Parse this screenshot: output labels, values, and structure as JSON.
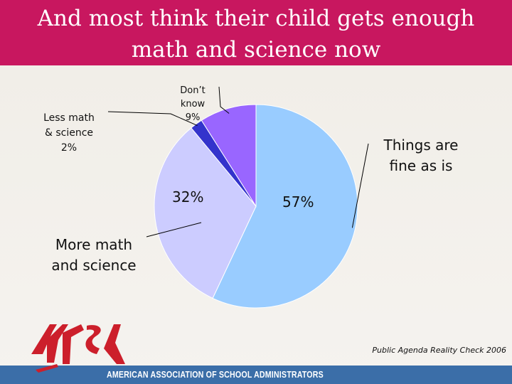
{
  "slide": {
    "title_line1": "And most think their child gets enough",
    "title_line2": "math and science now",
    "source": "Public Agenda Reality Check 2006",
    "logo_text": "AMERICAN ASSOCIATION OF SCHOOL ADMINISTRATORS",
    "logo_mark": "AASA"
  },
  "labels": {
    "less_line1": "Less math",
    "less_line2": "& science",
    "less_pct": "2%",
    "dont_line1": "Don’t",
    "dont_line2": "know",
    "dont_pct": "9%",
    "fine_line1": "Things are",
    "fine_line2": "fine as is",
    "more_line1": "More math",
    "more_line2": "and science",
    "pct_fine": "57%",
    "pct_more": "32%"
  },
  "colors": {
    "title_bar": "#c8175f",
    "logo_red": "#cc1f2b",
    "logo_bar": "#3b6ea8"
  },
  "chart_data": {
    "type": "pie",
    "title": "",
    "slices": [
      {
        "label": "Things are fine as is",
        "value": 57,
        "color": "#99ccff"
      },
      {
        "label": "More math and science",
        "value": 32,
        "color": "#ccccff"
      },
      {
        "label": "Less math & science",
        "value": 2,
        "color": "#3333cc"
      },
      {
        "label": "Don’t know",
        "value": 9,
        "color": "#9966ff"
      }
    ]
  }
}
